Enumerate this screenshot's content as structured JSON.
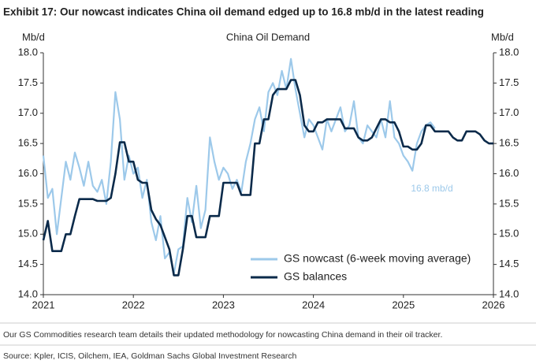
{
  "chart_data": {
    "type": "line",
    "title": "Exhibit 17: Our nowcast indicates China oil demand edged up to 16.8 mb/d in the latest reading",
    "subtitle": "China Oil Demand",
    "y_label": "Mb/d",
    "y2_label": "Mb/d",
    "note": "Our GS Commodities research team details their updated methodology for nowcasting China demand in their oil tracker.",
    "source": "Source: Kpler, ICIS, Oilchem, IEA, Goldman Sachs Global Investment Research",
    "annotations": [
      "16.8 mb/d"
    ],
    "legend": "lower right",
    "xlim": [
      2021,
      2026
    ],
    "xticks": [
      2021,
      2022,
      2023,
      2024,
      2025,
      2026
    ],
    "ylim": [
      14,
      18
    ],
    "yticks": [
      {
        "value": 14,
        "label": "14.0"
      },
      {
        "value": 14.5,
        "label": "14.5"
      },
      {
        "value": 15,
        "label": "15.0"
      },
      {
        "value": 15.5,
        "label": "15.5"
      },
      {
        "value": 16,
        "label": "16.0"
      },
      {
        "value": 16.5,
        "label": "16.5"
      },
      {
        "value": 17,
        "label": "17.0"
      },
      {
        "value": 17.5,
        "label": "17.5"
      },
      {
        "value": 18,
        "label": "18.0"
      }
    ],
    "y2lim": [
      14,
      18
    ],
    "y2ticks": [
      {
        "value": 14,
        "label": "14.0"
      },
      {
        "value": 14.5,
        "label": "14.5"
      },
      {
        "value": 15,
        "label": "15.0"
      },
      {
        "value": 15.5,
        "label": "15.5"
      },
      {
        "value": 16,
        "label": "16.0"
      },
      {
        "value": 16.5,
        "label": "16.5"
      },
      {
        "value": 17,
        "label": "17.0"
      },
      {
        "value": 17.5,
        "label": "17.5"
      },
      {
        "value": 18,
        "label": "18.0"
      }
    ],
    "x": [
      2021,
      2021.05,
      2021.1,
      2021.15,
      2021.2,
      2021.25,
      2021.3,
      2021.35,
      2021.4,
      2021.45,
      2021.5,
      2021.55,
      2021.6,
      2021.65,
      2021.7,
      2021.75,
      2021.8,
      2021.85,
      2021.9,
      2021.95,
      2022,
      2022.05,
      2022.1,
      2022.15,
      2022.2,
      2022.25,
      2022.3,
      2022.35,
      2022.4,
      2022.45,
      2022.5,
      2022.55,
      2022.6,
      2022.65,
      2022.7,
      2022.75,
      2022.8,
      2022.85,
      2022.9,
      2022.95,
      2023,
      2023.05,
      2023.1,
      2023.15,
      2023.2,
      2023.25,
      2023.3,
      2023.35,
      2023.4,
      2023.45,
      2023.5,
      2023.55,
      2023.6,
      2023.65,
      2023.7,
      2023.75,
      2023.8,
      2023.85,
      2023.9,
      2023.95,
      2024,
      2024.05,
      2024.1,
      2024.15,
      2024.2,
      2024.25,
      2024.3,
      2024.35,
      2024.4,
      2024.45,
      2024.5,
      2024.55,
      2024.6,
      2024.65,
      2024.7,
      2024.75,
      2024.8,
      2024.85,
      2024.9,
      2024.95,
      2025,
      2025.05,
      2025.1,
      2025.15,
      2025.2,
      2025.25,
      2025.3,
      2025.35,
      2025.4,
      2025.45,
      2025.5,
      2025.55,
      2025.6,
      2025.65,
      2025.7,
      2025.75,
      2025.8,
      2025.85,
      2025.9,
      2025.95,
      2026
    ],
    "series": [
      {
        "name": "GS nowcast (6-week moving average)",
        "color": "#9dc9ea",
        "values": [
          16.3,
          15.6,
          15.75,
          15.0,
          15.6,
          16.2,
          15.9,
          16.35,
          16.1,
          15.8,
          16.2,
          15.8,
          15.7,
          15.9,
          15.5,
          16.2,
          17.35,
          16.9,
          15.9,
          16.3,
          16.0,
          16.1,
          15.6,
          15.9,
          15.2,
          14.9,
          15.3,
          14.6,
          14.7,
          14.35,
          14.75,
          14.8,
          15.6,
          15.2,
          15.8,
          15.1,
          15.4,
          16.6,
          16.2,
          15.9,
          16.1,
          16.0,
          15.75,
          15.9,
          15.7,
          16.2,
          16.5,
          16.9,
          17.1,
          16.7,
          17.35,
          17.5,
          17.3,
          17.7,
          17.4,
          17.9,
          17.4,
          17.0,
          16.6,
          16.9,
          16.8,
          16.6,
          16.4,
          16.9,
          16.7,
          16.9,
          17.1,
          16.7,
          16.8,
          17.2,
          16.6,
          16.5,
          16.8,
          16.7,
          16.6,
          16.9,
          16.6,
          17.2,
          16.6,
          16.5,
          16.3,
          16.2,
          16.05,
          16.5,
          16.7,
          16.8,
          16.85,
          16.75,
          null,
          null,
          null,
          null,
          null,
          null,
          null,
          null,
          null,
          null,
          null,
          null,
          null
        ]
      },
      {
        "name": "GS balances",
        "color": "#0b2a4a",
        "values": [
          14.9,
          15.22,
          14.72,
          14.72,
          14.72,
          15.0,
          15.0,
          15.3,
          15.58,
          15.58,
          15.58,
          15.58,
          15.55,
          15.55,
          15.55,
          15.6,
          16.0,
          16.52,
          16.52,
          16.2,
          16.2,
          15.9,
          15.85,
          15.85,
          15.4,
          15.25,
          15.15,
          14.95,
          14.75,
          14.32,
          14.32,
          14.75,
          15.3,
          15.3,
          14.95,
          14.95,
          14.95,
          15.3,
          15.3,
          15.3,
          15.85,
          15.85,
          15.85,
          15.85,
          15.65,
          15.65,
          15.65,
          16.5,
          16.5,
          16.9,
          16.9,
          17.3,
          17.4,
          17.4,
          17.4,
          17.55,
          17.55,
          17.3,
          16.8,
          16.7,
          16.7,
          16.85,
          16.85,
          16.9,
          16.9,
          16.9,
          16.9,
          16.75,
          16.75,
          16.75,
          16.6,
          16.55,
          16.55,
          16.6,
          16.75,
          16.9,
          16.9,
          16.85,
          16.85,
          16.7,
          16.45,
          16.45,
          16.4,
          16.4,
          16.5,
          16.8,
          16.8,
          16.7,
          16.7,
          16.7,
          16.7,
          16.6,
          16.55,
          16.55,
          16.7,
          16.7,
          16.7,
          16.65,
          16.55,
          16.5,
          16.5
        ]
      }
    ]
  }
}
